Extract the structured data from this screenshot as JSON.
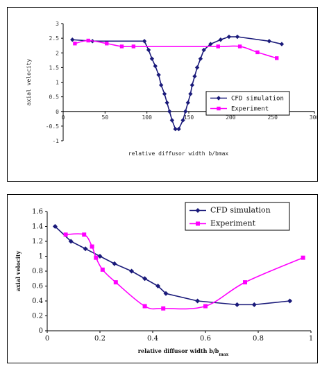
{
  "chart_data": [
    {
      "type": "line",
      "title": "",
      "xlabel": "relative diffusor width b/bmax",
      "ylabel": "axial velocity",
      "xlim": [
        0,
        300
      ],
      "ylim": [
        -1,
        3
      ],
      "xticks": [
        "0",
        "50",
        "100",
        "150",
        "200",
        "250",
        "300"
      ],
      "yticks": [
        "-1",
        "-0.5",
        "0",
        "0.5",
        "1",
        "1.5",
        "2",
        "2.5",
        "3"
      ],
      "grid": false,
      "legend": "bottom-right",
      "series": [
        {
          "name": "CFD simulation",
          "color": "#1a1a7a",
          "marker": "diamond",
          "x": [
            11,
            35,
            97,
            102,
            106,
            110,
            114,
            117,
            121,
            124,
            127,
            130,
            134,
            138,
            143,
            146,
            149,
            152,
            154,
            157,
            160,
            164,
            168,
            176,
            188,
            198,
            208,
            246,
            261
          ],
          "y": [
            2.45,
            2.4,
            2.4,
            2.1,
            1.8,
            1.55,
            1.25,
            0.9,
            0.6,
            0.3,
            0.0,
            -0.3,
            -0.6,
            -0.6,
            -0.3,
            0.0,
            0.3,
            0.6,
            0.9,
            1.2,
            1.5,
            1.8,
            2.1,
            2.3,
            2.45,
            2.55,
            2.55,
            2.4,
            2.3
          ]
        },
        {
          "name": "Experiment",
          "color": "#ff00ff",
          "marker": "square",
          "x": [
            14,
            30,
            52,
            70,
            84,
            185,
            211,
            232,
            255
          ],
          "y": [
            2.32,
            2.42,
            2.32,
            2.22,
            2.22,
            2.22,
            2.22,
            2.02,
            1.82
          ]
        }
      ]
    },
    {
      "type": "line",
      "title": "",
      "xlabel": "relative diffusor width b/b",
      "xlabel_sub": "max",
      "ylabel": "axial velocity",
      "xlim": [
        0,
        1
      ],
      "ylim": [
        0,
        1.6
      ],
      "xticks": [
        "0",
        "0.2",
        "0.4",
        "0.6",
        "0.8",
        "1"
      ],
      "yticks": [
        "0",
        "0.2",
        "0.4",
        "0.6",
        "0.8",
        "1",
        "1.2",
        "1.4",
        "1.6"
      ],
      "grid": false,
      "legend": "top-right",
      "series": [
        {
          "name": "CFD simulation",
          "color": "#1a1a7a",
          "marker": "diamond",
          "x": [
            0.03,
            0.09,
            0.145,
            0.2,
            0.255,
            0.32,
            0.37,
            0.42,
            0.45,
            0.57,
            0.72,
            0.785,
            0.92
          ],
          "y": [
            1.4,
            1.2,
            1.1,
            1.0,
            0.9,
            0.8,
            0.7,
            0.6,
            0.5,
            0.4,
            0.35,
            0.35,
            0.4
          ]
        },
        {
          "name": "Experiment",
          "color": "#ff00ff",
          "marker": "square",
          "x": [
            0.07,
            0.14,
            0.17,
            0.185,
            0.21,
            0.26,
            0.37,
            0.44,
            0.6,
            0.75,
            0.97
          ],
          "y": [
            1.29,
            1.29,
            1.13,
            0.98,
            0.82,
            0.65,
            0.33,
            0.3,
            0.33,
            0.65,
            0.98
          ]
        }
      ]
    }
  ]
}
